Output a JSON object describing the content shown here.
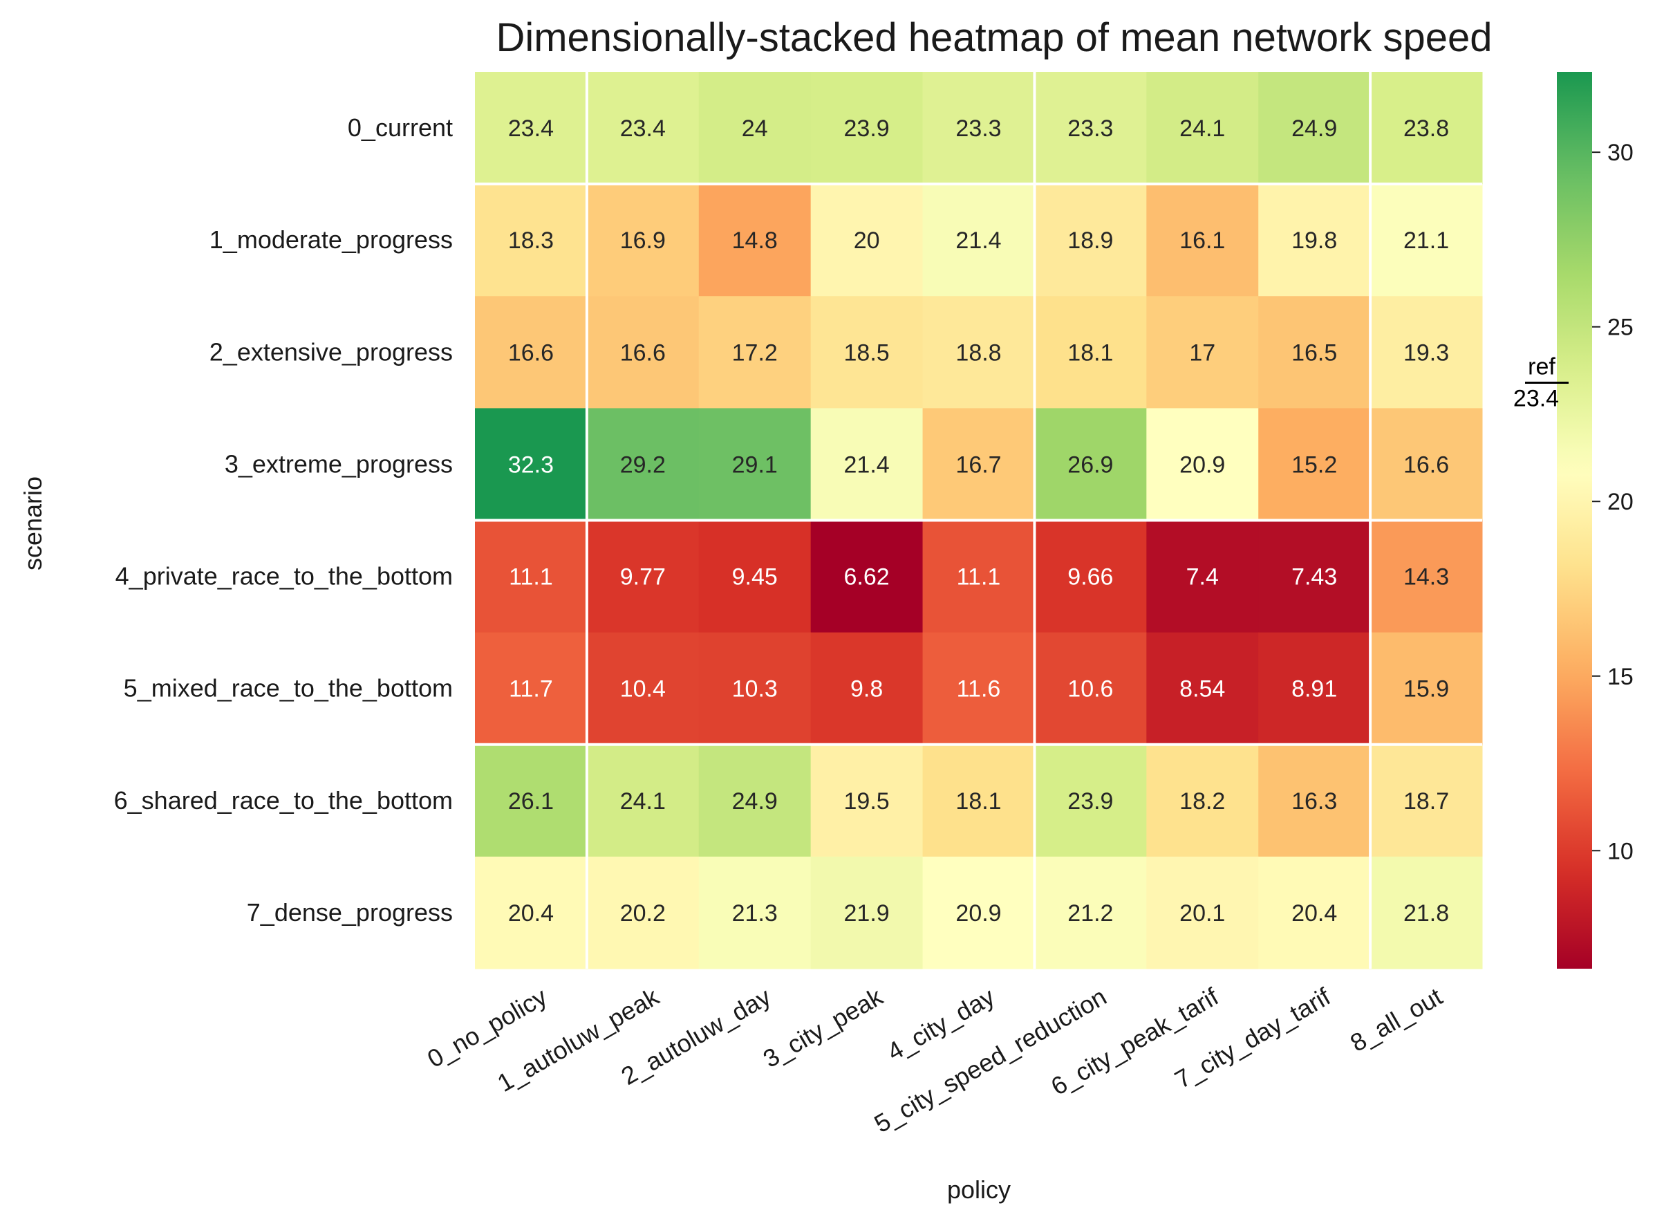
{
  "chart_data": {
    "type": "heatmap",
    "title": "Dimensionally-stacked heatmap of mean network speed",
    "xlabel": "policy",
    "ylabel": "scenario",
    "x_categories": [
      "0_no_policy",
      "1_autoluw_peak",
      "2_autoluw_day",
      "3_city_peak",
      "4_city_day",
      "5_city_speed_reduction",
      "6_city_peak_tarif",
      "7_city_day_tarif",
      "8_all_out"
    ],
    "y_categories": [
      "0_current",
      "1_moderate_progress",
      "2_extensive_progress",
      "3_extreme_progress",
      "4_private_race_to_the_bottom",
      "5_mixed_race_to_the_bottom",
      "6_shared_race_to_the_bottom",
      "7_dense_progress"
    ],
    "values": [
      [
        23.4,
        23.4,
        24,
        23.9,
        23.3,
        23.3,
        24.1,
        24.9,
        23.8
      ],
      [
        18.3,
        16.9,
        14.8,
        20,
        21.4,
        18.9,
        16.1,
        19.8,
        21.1
      ],
      [
        16.6,
        16.6,
        17.2,
        18.5,
        18.8,
        18.1,
        17,
        16.5,
        19.3
      ],
      [
        32.3,
        29.2,
        29.1,
        21.4,
        16.7,
        26.9,
        20.9,
        15.2,
        16.6
      ],
      [
        11.1,
        9.77,
        9.45,
        6.62,
        11.1,
        9.66,
        7.4,
        7.43,
        14.3
      ],
      [
        11.7,
        10.4,
        10.3,
        9.8,
        11.6,
        10.6,
        8.54,
        8.91,
        15.9
      ],
      [
        26.1,
        24.1,
        24.9,
        19.5,
        18.1,
        23.9,
        18.2,
        16.3,
        18.7
      ],
      [
        20.4,
        20.2,
        21.3,
        21.9,
        20.9,
        21.2,
        20.1,
        20.4,
        21.8
      ]
    ],
    "colormap": "RdYlGn",
    "colorbar": {
      "range": [
        6.62,
        32.3
      ],
      "ticks": [
        10,
        15,
        20,
        25,
        30
      ],
      "reference_label": "ref",
      "reference_value": 23.4
    },
    "grid": false,
    "group_dividers": {
      "rows_after": [
        0,
        3,
        5
      ],
      "cols_after": [
        0,
        4,
        7
      ]
    }
  }
}
